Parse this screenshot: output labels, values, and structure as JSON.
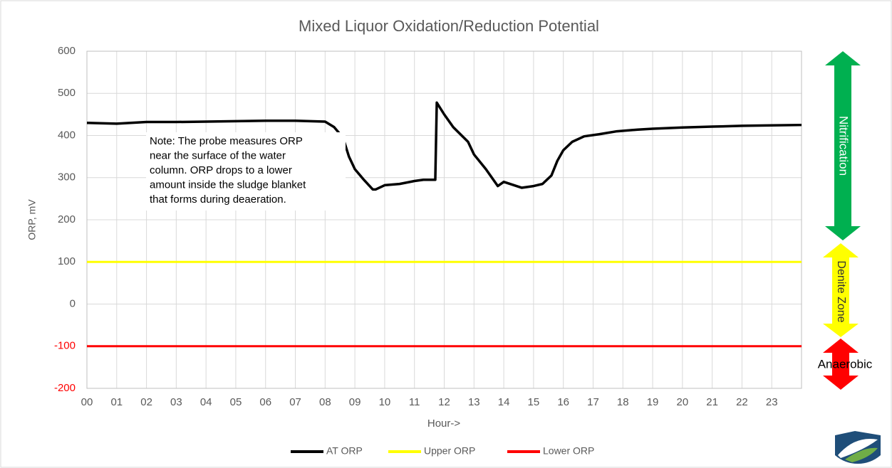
{
  "chart_data": {
    "type": "line",
    "title": "Mixed Liquor Oxidation/Reduction Potential",
    "x_label": "Hour->",
    "y_label": "ORP, mV",
    "xlim": [
      0,
      24
    ],
    "xticks": [
      {
        "value": 0,
        "label": "00"
      },
      {
        "value": 1,
        "label": "01"
      },
      {
        "value": 2,
        "label": "02"
      },
      {
        "value": 3,
        "label": "03"
      },
      {
        "value": 4,
        "label": "04"
      },
      {
        "value": 5,
        "label": "05"
      },
      {
        "value": 6,
        "label": "06"
      },
      {
        "value": 7,
        "label": "07"
      },
      {
        "value": 8,
        "label": "08"
      },
      {
        "value": 9,
        "label": "09"
      },
      10,
      11,
      12,
      13,
      14,
      15,
      16,
      17,
      18,
      19,
      20,
      21,
      22,
      23
    ],
    "ylim": [
      -200,
      600
    ],
    "yticks": [
      -200,
      -100,
      0,
      100,
      200,
      300,
      400,
      500,
      600
    ],
    "grid": true,
    "legend": "bottom",
    "series": [
      {
        "name": "AT ORP",
        "color": "#000000",
        "x": [
          0,
          1,
          2,
          3,
          4,
          5,
          6,
          7,
          8,
          8.3,
          8.6,
          8.8,
          9,
          9.3,
          9.6,
          9.7,
          10,
          10.5,
          11,
          11.3,
          11.7,
          11.75,
          12,
          12.3,
          12.8,
          13,
          13.4,
          13.8,
          14,
          14.3,
          14.6,
          15,
          15.3,
          15.6,
          15.8,
          16,
          16.3,
          16.7,
          17.2,
          17.8,
          18.5,
          19,
          20,
          21,
          22,
          23,
          24
        ],
        "values": [
          430,
          428,
          432,
          432,
          433,
          434,
          435,
          435,
          433,
          420,
          395,
          350,
          320,
          295,
          272,
          272,
          282,
          285,
          292,
          295,
          295,
          478,
          450,
          420,
          385,
          355,
          320,
          280,
          290,
          283,
          276,
          280,
          285,
          305,
          340,
          365,
          385,
          398,
          403,
          410,
          414,
          416,
          419,
          421,
          423,
          424,
          425
        ]
      },
      {
        "name": "Upper ORP",
        "color": "#ffff00",
        "x": [
          0,
          24
        ],
        "values": [
          100,
          100
        ]
      },
      {
        "name": "Lower ORP",
        "color": "#ff0000",
        "x": [
          0,
          24
        ],
        "values": [
          -100,
          -100
        ]
      }
    ],
    "note": [
      "Note:  The probe measures ORP",
      "near the surface of the water",
      "column.  ORP drops to a lower",
      "amount inside the sludge blanket",
      "that forms during deaeration."
    ],
    "zones": [
      "Nitrification",
      "Denite Zone",
      "Anaerobic"
    ]
  }
}
